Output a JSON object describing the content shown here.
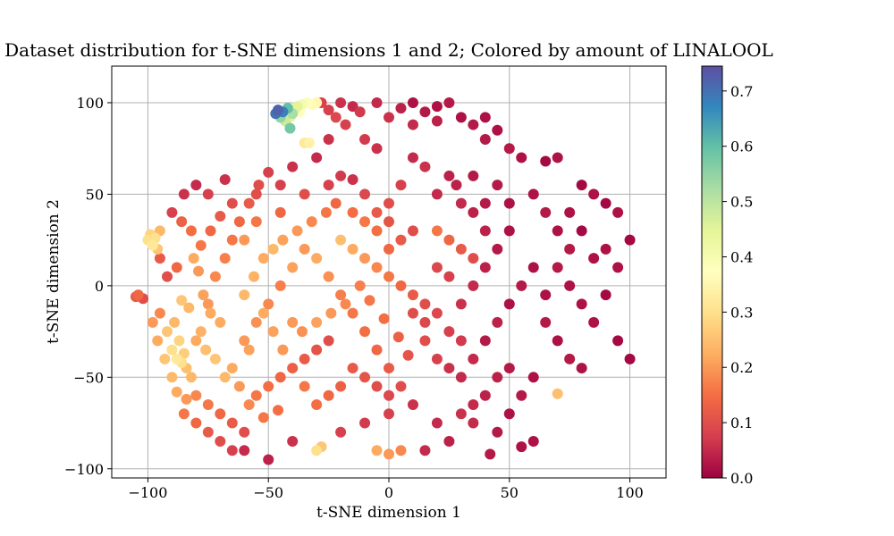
{
  "chart_data": {
    "type": "scatter",
    "title": "Dataset distribution for t-SNE dimensions 1 and 2; Colored by amount of LINALOOL",
    "xlabel": "t-SNE dimension 1",
    "ylabel": "t-SNE dimension 2",
    "xlim": [
      -115,
      115
    ],
    "ylim": [
      -105,
      120
    ],
    "x_ticks": [
      -100,
      -50,
      0,
      50,
      100
    ],
    "x_tick_labels": [
      "−100",
      "−50",
      "0",
      "50",
      "100"
    ],
    "y_ticks": [
      -100,
      -50,
      0,
      50,
      100
    ],
    "y_tick_labels": [
      "−100",
      "−50",
      "0",
      "50",
      "100"
    ],
    "grid": true,
    "colorbar": {
      "label": "",
      "range": [
        0.0,
        0.745
      ],
      "ticks": [
        0.0,
        0.1,
        0.2,
        0.3,
        0.4,
        0.5,
        0.6,
        0.7
      ],
      "tick_labels": [
        "0.0",
        "0.1",
        "0.2",
        "0.3",
        "0.4",
        "0.5",
        "0.6",
        "0.7"
      ],
      "colormap": "Spectral",
      "colors": [
        "#9e0142",
        "#d53e4f",
        "#f46d43",
        "#fdae61",
        "#fee08b",
        "#ffffbf",
        "#e6f598",
        "#abdda4",
        "#66c2a5",
        "#3288bd",
        "#5e4fa2"
      ]
    },
    "marker_color_note": "colored by LINALOOL amount",
    "points": [
      [
        -46,
        96,
        0.72
      ],
      [
        -44,
        95,
        0.68
      ],
      [
        -42,
        97,
        0.6
      ],
      [
        -40,
        94,
        0.52
      ],
      [
        -38,
        98,
        0.45
      ],
      [
        -36,
        99,
        0.4
      ],
      [
        -34,
        100,
        0.38
      ],
      [
        -32,
        99,
        0.36
      ],
      [
        -45,
        92,
        0.55
      ],
      [
        -43,
        90,
        0.48
      ],
      [
        -41,
        92,
        0.44
      ],
      [
        -39,
        96,
        0.41
      ],
      [
        -37,
        95,
        0.37
      ],
      [
        -30,
        100,
        0.35
      ],
      [
        -41,
        86,
        0.58
      ],
      [
        -47,
        94,
        0.7
      ],
      [
        -33,
        78,
        0.34
      ],
      [
        -35,
        78,
        0.32
      ],
      [
        -105,
        -6,
        0.12
      ],
      [
        -102,
        -7,
        0.1
      ],
      [
        -104,
        -5,
        0.14
      ],
      [
        -100,
        25,
        0.3
      ],
      [
        -98,
        22,
        0.32
      ],
      [
        -99,
        28,
        0.28
      ],
      [
        -97,
        26,
        0.3
      ],
      [
        -96,
        20,
        0.26
      ],
      [
        -95,
        30,
        0.24
      ],
      [
        -90,
        -35,
        0.3
      ],
      [
        -88,
        -40,
        0.32
      ],
      [
        -87,
        -30,
        0.28
      ],
      [
        -86,
        -42,
        0.3
      ],
      [
        -85,
        -37,
        0.27
      ],
      [
        -84,
        -45,
        0.25
      ],
      [
        -92,
        -25,
        0.26
      ],
      [
        -89,
        -20,
        0.24
      ],
      [
        -80,
        -30,
        0.22
      ],
      [
        -82,
        -50,
        0.24
      ],
      [
        -30,
        -90,
        0.3
      ],
      [
        -28,
        -88,
        0.26
      ],
      [
        70,
        -59,
        0.25
      ],
      [
        -5,
        -90,
        0.22
      ],
      [
        0,
        -92,
        0.2
      ],
      [
        5,
        -90,
        0.18
      ],
      [
        -60,
        -30,
        0.2
      ],
      [
        -55,
        -20,
        0.19
      ],
      [
        -50,
        -10,
        0.18
      ],
      [
        -45,
        0,
        0.17
      ],
      [
        -40,
        10,
        0.21
      ],
      [
        -35,
        20,
        0.2
      ],
      [
        -30,
        15,
        0.22
      ],
      [
        -25,
        5,
        0.19
      ],
      [
        -20,
        -5,
        0.17
      ],
      [
        -15,
        -15,
        0.16
      ],
      [
        -10,
        -25,
        0.15
      ],
      [
        -5,
        -35,
        0.14
      ],
      [
        0,
        -45,
        0.12
      ],
      [
        5,
        -55,
        0.1
      ],
      [
        -70,
        -20,
        0.22
      ],
      [
        -75,
        -10,
        0.2
      ],
      [
        -72,
        5,
        0.18
      ],
      [
        -68,
        15,
        0.17
      ],
      [
        -65,
        25,
        0.16
      ],
      [
        -62,
        35,
        0.14
      ],
      [
        -58,
        45,
        0.12
      ],
      [
        -54,
        55,
        0.1
      ],
      [
        -50,
        62,
        0.08
      ],
      [
        -20,
        25,
        0.25
      ],
      [
        -15,
        20,
        0.22
      ],
      [
        -10,
        15,
        0.2
      ],
      [
        -5,
        10,
        0.18
      ],
      [
        0,
        5,
        0.16
      ],
      [
        5,
        0,
        0.14
      ],
      [
        10,
        -5,
        0.12
      ],
      [
        15,
        -10,
        0.1
      ],
      [
        20,
        30,
        0.16
      ],
      [
        25,
        25,
        0.14
      ],
      [
        30,
        20,
        0.12
      ],
      [
        35,
        15,
        0.1
      ],
      [
        -80,
        -60,
        0.18
      ],
      [
        -75,
        -65,
        0.16
      ],
      [
        -70,
        -70,
        0.14
      ],
      [
        -65,
        -75,
        0.12
      ],
      [
        -60,
        -80,
        0.1
      ],
      [
        -55,
        -60,
        0.16
      ],
      [
        -50,
        -55,
        0.15
      ],
      [
        -45,
        -50,
        0.14
      ],
      [
        -40,
        -45,
        0.13
      ],
      [
        -35,
        -40,
        0.12
      ],
      [
        -30,
        -35,
        0.11
      ],
      [
        -25,
        -30,
        0.1
      ],
      [
        10,
        100,
        0.02
      ],
      [
        15,
        95,
        0.03
      ],
      [
        20,
        98,
        0.02
      ],
      [
        5,
        97,
        0.04
      ],
      [
        -20,
        100,
        0.06
      ],
      [
        -15,
        98,
        0.05
      ],
      [
        -25,
        96,
        0.08
      ],
      [
        40,
        80,
        0.03
      ],
      [
        45,
        85,
        0.02
      ],
      [
        50,
        75,
        0.03
      ],
      [
        55,
        70,
        0.02
      ],
      [
        65,
        68,
        0.01
      ],
      [
        70,
        70,
        0.02
      ],
      [
        80,
        55,
        0.01
      ],
      [
        85,
        50,
        0.02
      ],
      [
        90,
        45,
        0.01
      ],
      [
        95,
        40,
        0.02
      ],
      [
        100,
        25,
        0.01
      ],
      [
        95,
        10,
        0.02
      ],
      [
        90,
        -5,
        0.01
      ],
      [
        85,
        -20,
        0.02
      ],
      [
        95,
        -30,
        0.01
      ],
      [
        100,
        -40,
        0.01
      ],
      [
        60,
        50,
        0.02
      ],
      [
        65,
        40,
        0.03
      ],
      [
        70,
        30,
        0.02
      ],
      [
        75,
        20,
        0.03
      ],
      [
        60,
        10,
        0.02
      ],
      [
        55,
        0,
        0.03
      ],
      [
        50,
        -10,
        0.02
      ],
      [
        45,
        -20,
        0.04
      ],
      [
        40,
        -30,
        0.03
      ],
      [
        35,
        -40,
        0.05
      ],
      [
        60,
        -50,
        0.02
      ],
      [
        55,
        -60,
        0.03
      ],
      [
        50,
        -70,
        0.02
      ],
      [
        45,
        -80,
        0.03
      ],
      [
        55,
        -88,
        0.02
      ],
      [
        60,
        -85,
        0.02
      ],
      [
        42,
        -92,
        0.03
      ],
      [
        70,
        -30,
        0.02
      ],
      [
        75,
        -40,
        0.03
      ],
      [
        80,
        -45,
        0.02
      ],
      [
        65,
        -20,
        0.03
      ],
      [
        20,
        50,
        0.05
      ],
      [
        25,
        60,
        0.04
      ],
      [
        15,
        65,
        0.06
      ],
      [
        10,
        70,
        0.05
      ],
      [
        5,
        55,
        0.08
      ],
      [
        0,
        45,
        0.1
      ],
      [
        -40,
        65,
        0.06
      ],
      [
        -30,
        70,
        0.05
      ],
      [
        -20,
        60,
        0.07
      ],
      [
        -10,
        50,
        0.09
      ],
      [
        -85,
        50,
        0.06
      ],
      [
        -80,
        55,
        0.05
      ],
      [
        -90,
        40,
        0.08
      ],
      [
        -95,
        15,
        0.12
      ],
      [
        -92,
        5,
        0.1
      ],
      [
        -88,
        10,
        0.14
      ],
      [
        -60,
        -90,
        0.05
      ],
      [
        -50,
        -95,
        0.04
      ],
      [
        -40,
        -85,
        0.06
      ],
      [
        -20,
        -80,
        0.08
      ],
      [
        -10,
        -75,
        0.07
      ],
      [
        0,
        -70,
        0.08
      ],
      [
        10,
        -65,
        0.06
      ],
      [
        20,
        -75,
        0.05
      ],
      [
        25,
        -85,
        0.04
      ],
      [
        15,
        -90,
        0.05
      ],
      [
        30,
        -50,
        0.05
      ],
      [
        25,
        -45,
        0.06
      ],
      [
        20,
        -40,
        0.08
      ],
      [
        15,
        -30,
        0.1
      ],
      [
        30,
        -10,
        0.06
      ],
      [
        35,
        0,
        0.05
      ],
      [
        40,
        10,
        0.04
      ],
      [
        45,
        20,
        0.03
      ],
      [
        50,
        30,
        0.02
      ],
      [
        -65,
        -45,
        0.22
      ],
      [
        -68,
        -50,
        0.24
      ],
      [
        -72,
        -40,
        0.26
      ],
      [
        -76,
        -35,
        0.25
      ],
      [
        -78,
        -25,
        0.23
      ],
      [
        -74,
        -15,
        0.22
      ],
      [
        -77,
        -5,
        0.21
      ],
      [
        -79,
        8,
        0.2
      ],
      [
        -81,
        15,
        0.22
      ],
      [
        -83,
        -12,
        0.24
      ],
      [
        -86,
        -8,
        0.26
      ],
      [
        -52,
        15,
        0.22
      ],
      [
        -48,
        20,
        0.24
      ],
      [
        -44,
        25,
        0.21
      ],
      [
        -38,
        30,
        0.2
      ],
      [
        -32,
        35,
        0.18
      ],
      [
        -26,
        40,
        0.16
      ],
      [
        -22,
        45,
        0.14
      ],
      [
        -40,
        -20,
        0.2
      ],
      [
        -36,
        -25,
        0.19
      ],
      [
        -30,
        -20,
        0.21
      ],
      [
        -24,
        -15,
        0.2
      ],
      [
        -18,
        -10,
        0.18
      ],
      [
        -12,
        0,
        0.17
      ],
      [
        -8,
        -8,
        0.16
      ],
      [
        -2,
        -18,
        0.15
      ],
      [
        4,
        -28,
        0.13
      ],
      [
        8,
        -38,
        0.11
      ],
      [
        -60,
        -5,
        0.24
      ],
      [
        -56,
        5,
        0.23
      ],
      [
        -52,
        -15,
        0.22
      ],
      [
        -48,
        -25,
        0.21
      ],
      [
        -44,
        -35,
        0.2
      ],
      [
        -58,
        -35,
        0.21
      ],
      [
        -62,
        -55,
        0.2
      ],
      [
        -58,
        -65,
        0.18
      ],
      [
        -52,
        -72,
        0.16
      ],
      [
        -46,
        -68,
        0.15
      ],
      [
        -15,
        -45,
        0.12
      ],
      [
        -10,
        -50,
        0.11
      ],
      [
        -5,
        -55,
        0.1
      ],
      [
        0,
        -60,
        0.09
      ],
      [
        -20,
        -55,
        0.13
      ],
      [
        -25,
        -60,
        0.14
      ],
      [
        -30,
        -65,
        0.15
      ],
      [
        -35,
        -55,
        0.16
      ],
      [
        10,
        30,
        0.1
      ],
      [
        5,
        25,
        0.12
      ],
      [
        0,
        20,
        0.14
      ],
      [
        -5,
        30,
        0.15
      ],
      [
        -10,
        35,
        0.16
      ],
      [
        -15,
        40,
        0.15
      ],
      [
        -5,
        40,
        0.12
      ],
      [
        0,
        35,
        0.11
      ],
      [
        20,
        10,
        0.09
      ],
      [
        25,
        5,
        0.08
      ],
      [
        20,
        -15,
        0.09
      ],
      [
        25,
        -25,
        0.08
      ],
      [
        30,
        -30,
        0.07
      ],
      [
        10,
        -15,
        0.1
      ],
      [
        15,
        -20,
        0.09
      ],
      [
        -65,
        45,
        0.1
      ],
      [
        -70,
        38,
        0.12
      ],
      [
        -74,
        30,
        0.14
      ],
      [
        -78,
        22,
        0.16
      ],
      [
        -82,
        30,
        0.15
      ],
      [
        -86,
        35,
        0.13
      ],
      [
        -75,
        50,
        0.08
      ],
      [
        -68,
        58,
        0.06
      ],
      [
        40,
        -60,
        0.04
      ],
      [
        35,
        -65,
        0.05
      ],
      [
        30,
        -70,
        0.06
      ],
      [
        35,
        -75,
        0.05
      ],
      [
        50,
        -45,
        0.03
      ],
      [
        45,
        -50,
        0.04
      ],
      [
        75,
        0,
        0.02
      ],
      [
        80,
        -10,
        0.02
      ],
      [
        70,
        10,
        0.03
      ],
      [
        65,
        -5,
        0.02
      ],
      [
        85,
        15,
        0.02
      ],
      [
        80,
        30,
        0.01
      ],
      [
        75,
        40,
        0.02
      ],
      [
        90,
        20,
        0.02
      ],
      [
        35,
        40,
        0.04
      ],
      [
        40,
        45,
        0.03
      ],
      [
        30,
        45,
        0.05
      ],
      [
        28,
        55,
        0.04
      ],
      [
        35,
        60,
        0.03
      ],
      [
        45,
        55,
        0.03
      ],
      [
        50,
        45,
        0.02
      ],
      [
        40,
        30,
        0.04
      ],
      [
        25,
        100,
        0.03
      ],
      [
        30,
        92,
        0.02
      ],
      [
        35,
        88,
        0.03
      ],
      [
        40,
        92,
        0.02
      ],
      [
        20,
        90,
        0.04
      ],
      [
        10,
        88,
        0.05
      ],
      [
        0,
        92,
        0.06
      ],
      [
        -5,
        100,
        0.05
      ],
      [
        -12,
        95,
        0.07
      ],
      [
        -28,
        100,
        0.08
      ],
      [
        -22,
        92,
        0.09
      ],
      [
        -18,
        88,
        0.08
      ],
      [
        -10,
        80,
        0.07
      ],
      [
        -5,
        75,
        0.06
      ],
      [
        -25,
        80,
        0.06
      ],
      [
        -95,
        -15,
        0.18
      ],
      [
        -98,
        -20,
        0.2
      ],
      [
        -96,
        -30,
        0.22
      ],
      [
        -93,
        -40,
        0.26
      ],
      [
        -90,
        -50,
        0.24
      ],
      [
        -88,
        -58,
        0.22
      ],
      [
        -84,
        -62,
        0.2
      ],
      [
        -60,
        25,
        0.2
      ],
      [
        -55,
        35,
        0.16
      ],
      [
        -45,
        40,
        0.14
      ],
      [
        -35,
        50,
        0.1
      ],
      [
        -25,
        55,
        0.08
      ],
      [
        -15,
        58,
        0.06
      ],
      [
        -45,
        55,
        0.08
      ],
      [
        -55,
        50,
        0.1
      ],
      [
        -70,
        -85,
        0.1
      ],
      [
        -65,
        -90,
        0.08
      ],
      [
        -75,
        -80,
        0.12
      ],
      [
        -80,
        -75,
        0.14
      ],
      [
        -85,
        -70,
        0.16
      ]
    ]
  }
}
